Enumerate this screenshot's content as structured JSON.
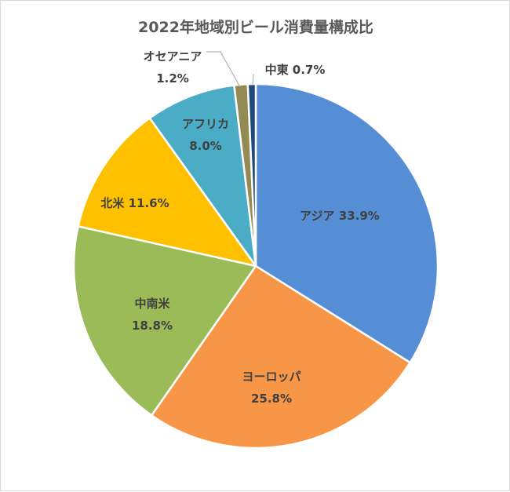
{
  "chart_data": {
    "type": "pie",
    "title": "2022年地域別ビール消費量構成比",
    "slices": [
      {
        "name": "アジア",
        "value": 33.9,
        "value_label": "33.9%",
        "color": "#558ed5"
      },
      {
        "name": "ヨーロッパ",
        "value": 25.8,
        "value_label": "25.8%",
        "color": "#f79646"
      },
      {
        "name": "中南米",
        "value": 18.8,
        "value_label": "18.8%",
        "color": "#9bbb59"
      },
      {
        "name": "北米",
        "value": 11.6,
        "value_label": "11.6%",
        "color": "#ffc000"
      },
      {
        "name": "アフリカ",
        "value": 8.0,
        "value_label": "8.0%",
        "color": "#4bacc6"
      },
      {
        "name": "オセアニア",
        "value": 1.2,
        "value_label": "1.2%",
        "color": "#948a54"
      },
      {
        "name": "中東",
        "value": 0.7,
        "value_label": "0.7%",
        "color": "#1f497d"
      }
    ],
    "slice_border_color": "#ffffff",
    "leader_line_color": "#a6a6a6",
    "legend": "none"
  }
}
